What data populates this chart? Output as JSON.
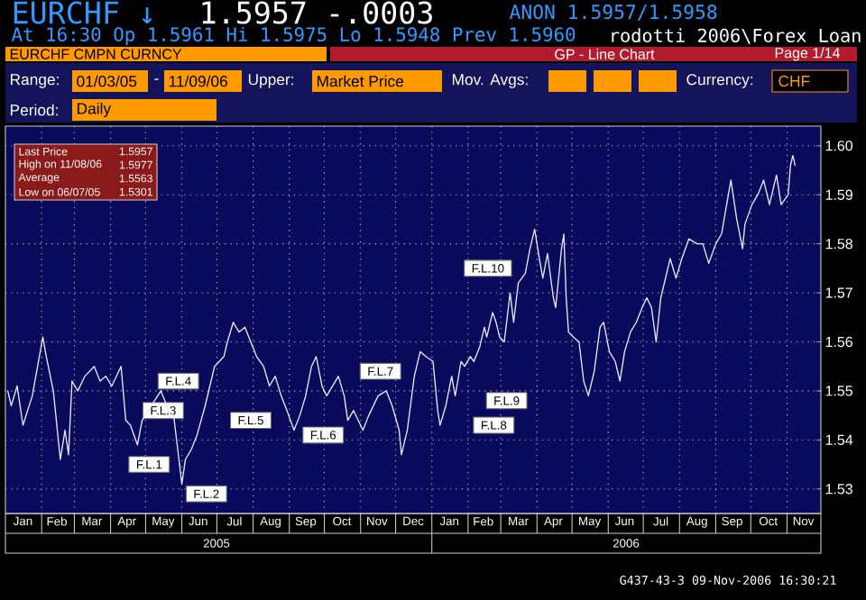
{
  "chart_data": {
    "type": "line",
    "title": "EURCHF CMPN CURNCY",
    "subtitle": "GP - Line Chart",
    "annotations": [
      "EURCHF ↓",
      "1.5957 -.0003",
      "ANON 1.5957/1.5958",
      "At 16:30 Op 1.5961 Hi 1.5975 Lo 1.5948 Prev 1.5960",
      "rodotti 2006\\Forex Loan",
      "Page 1/14",
      "Range:",
      "01/03/05",
      "-",
      "11/09/06",
      "Upper:",
      "Market Price",
      "Mov. Avgs:",
      "Currency:",
      "CHF",
      "Period:",
      "Daily",
      "Last Price",
      "1.5957",
      "High on 11/08/06",
      "1.5977",
      "Average",
      "1.5563",
      "Low on 06/07/05",
      "1.5301",
      "G437-43-3 09-Nov-2006 16:30:21",
      "2005",
      "2006",
      {
        "text": "F.L.1",
        "x": "2005-05-04",
        "y": 1.535
      },
      {
        "text": "F.L.2",
        "x": "2005-06-22",
        "y": 1.529
      },
      {
        "text": "F.L.3",
        "x": "2005-05-16",
        "y": 1.546
      },
      {
        "text": "F.L.4",
        "x": "2005-05-29",
        "y": 1.552
      },
      {
        "text": "F.L.5",
        "x": "2005-07-30",
        "y": 1.544
      },
      {
        "text": "F.L.6",
        "x": "2005-09-30",
        "y": 1.541
      },
      {
        "text": "F.L.7",
        "x": "2005-11-18",
        "y": 1.554
      },
      {
        "text": "F.L.8",
        "x": "2006-02-23",
        "y": 1.543
      },
      {
        "text": "F.L.9",
        "x": "2006-03-06",
        "y": 1.548
      },
      {
        "text": "F.L.10",
        "x": "2006-02-18",
        "y": 1.575
      }
    ],
    "x": [
      "2005-01-03",
      "2005-01-06",
      "2005-01-11",
      "2005-01-16",
      "2005-01-24",
      "2005-02-02",
      "2005-02-05",
      "2005-02-11",
      "2005-02-17",
      "2005-02-21",
      "2005-02-24",
      "2005-02-27",
      "2005-03-04",
      "2005-03-10",
      "2005-03-18",
      "2005-03-23",
      "2005-03-28",
      "2005-04-02",
      "2005-04-10",
      "2005-04-14",
      "2005-04-18",
      "2005-04-24",
      "2005-04-28",
      "2005-05-06",
      "2005-05-14",
      "2005-05-21",
      "2005-05-25",
      "2005-05-28",
      "2005-06-01",
      "2005-06-04",
      "2005-06-09",
      "2005-06-14",
      "2005-06-21",
      "2005-06-29",
      "2005-07-07",
      "2005-07-10",
      "2005-07-15",
      "2005-07-20",
      "2005-07-25",
      "2005-07-30",
      "2005-08-04",
      "2005-08-10",
      "2005-08-15",
      "2005-08-20",
      "2005-08-25",
      "2005-08-30",
      "2005-09-05",
      "2005-09-10",
      "2005-09-15",
      "2005-09-20",
      "2005-09-24",
      "2005-09-29",
      "2005-10-03",
      "2005-10-08",
      "2005-10-13",
      "2005-10-18",
      "2005-10-21",
      "2005-10-26",
      "2005-11-03",
      "2005-11-08",
      "2005-11-16",
      "2005-11-23",
      "2005-11-28",
      "2005-12-04",
      "2005-12-06",
      "2005-12-11",
      "2005-12-17",
      "2005-12-22",
      "2005-12-27",
      "2006-01-02",
      "2006-01-06",
      "2006-01-08",
      "2006-01-13",
      "2006-01-18",
      "2006-01-21",
      "2006-01-26",
      "2006-01-29",
      "2006-02-03",
      "2006-02-06",
      "2006-02-11",
      "2006-02-15",
      "2006-02-17",
      "2006-02-22",
      "2006-02-25",
      "2006-02-28",
      "2006-03-04",
      "2006-03-09",
      "2006-03-12",
      "2006-03-16",
      "2006-03-22",
      "2006-03-26",
      "2006-03-30",
      "2006-04-03",
      "2006-04-06",
      "2006-04-10",
      "2006-04-15",
      "2006-04-17",
      "2006-04-22",
      "2006-04-24",
      "2006-04-26",
      "2006-04-28",
      "2006-05-02",
      "2006-05-07",
      "2006-05-11",
      "2006-05-15",
      "2006-05-20",
      "2006-05-25",
      "2006-05-28",
      "2006-06-02",
      "2006-06-07",
      "2006-06-11",
      "2006-06-15",
      "2006-06-20",
      "2006-06-25",
      "2006-06-30",
      "2006-07-04",
      "2006-07-08",
      "2006-07-12",
      "2006-07-16",
      "2006-07-21",
      "2006-07-24",
      "2006-07-29",
      "2006-08-03",
      "2006-08-09",
      "2006-08-16",
      "2006-08-21",
      "2006-08-26",
      "2006-09-01",
      "2006-09-06",
      "2006-09-14",
      "2006-09-19",
      "2006-09-24",
      "2006-09-26",
      "2006-10-02",
      "2006-10-07",
      "2006-10-12",
      "2006-10-17",
      "2006-10-23",
      "2006-10-27",
      "2006-11-02",
      "2006-11-04",
      "2006-11-06",
      "2006-11-08"
    ],
    "series": [
      {
        "color": "#e8e8ff",
        "values": [
          1.55,
          1.547,
          1.551,
          1.543,
          1.549,
          1.561,
          1.557,
          1.55,
          1.536,
          1.542,
          1.537,
          1.552,
          1.55,
          1.553,
          1.555,
          1.552,
          1.553,
          1.551,
          1.555,
          1.544,
          1.543,
          1.539,
          1.544,
          1.547,
          1.55,
          1.546,
          1.545,
          1.539,
          1.531,
          1.536,
          1.538,
          1.541,
          1.547,
          1.555,
          1.557,
          1.56,
          1.564,
          1.562,
          1.563,
          1.56,
          1.557,
          1.555,
          1.551,
          1.553,
          1.549,
          1.546,
          1.542,
          1.545,
          1.549,
          1.555,
          1.557,
          1.551,
          1.549,
          1.551,
          1.553,
          1.549,
          1.544,
          1.546,
          1.542,
          1.545,
          1.549,
          1.55,
          1.547,
          1.542,
          1.537,
          1.542,
          1.553,
          1.558,
          1.557,
          1.556,
          1.546,
          1.543,
          1.547,
          1.553,
          1.549,
          1.556,
          1.555,
          1.557,
          1.556,
          1.559,
          1.563,
          1.561,
          1.566,
          1.564,
          1.561,
          1.56,
          1.57,
          1.564,
          1.572,
          1.574,
          1.579,
          1.583,
          1.577,
          1.573,
          1.578,
          1.569,
          1.567,
          1.579,
          1.582,
          1.569,
          1.562,
          1.561,
          1.56,
          1.552,
          1.549,
          1.554,
          1.563,
          1.564,
          1.558,
          1.556,
          1.552,
          1.558,
          1.562,
          1.564,
          1.567,
          1.569,
          1.567,
          1.56,
          1.569,
          1.574,
          1.577,
          1.573,
          1.577,
          1.581,
          1.58,
          1.58,
          1.576,
          1.58,
          1.582,
          1.593,
          1.585,
          1.579,
          1.584,
          1.588,
          1.59,
          1.593,
          1.588,
          1.594,
          1.588,
          1.59,
          1.596,
          1.598,
          1.596
        ]
      }
    ],
    "xlim": [
      "2005-01-01",
      "2006-11-30"
    ],
    "xticks": [
      {
        "value": "2005-01-16",
        "label": "Jan"
      },
      {
        "value": "2005-02-14",
        "label": "Feb"
      },
      {
        "value": "2005-03-16",
        "label": "Mar"
      },
      {
        "value": "2005-04-15",
        "label": "Apr"
      },
      {
        "value": "2005-05-16",
        "label": "May"
      },
      {
        "value": "2005-06-15",
        "label": "Jun"
      },
      {
        "value": "2005-07-16",
        "label": "Jul"
      },
      {
        "value": "2005-08-16",
        "label": "Aug"
      },
      {
        "value": "2005-09-15",
        "label": "Sep"
      },
      {
        "value": "2005-10-16",
        "label": "Oct"
      },
      {
        "value": "2005-11-15",
        "label": "Nov"
      },
      {
        "value": "2005-12-16",
        "label": "Dec"
      },
      {
        "value": "2006-01-16",
        "label": "Jan"
      },
      {
        "value": "2006-02-14",
        "label": "Feb"
      },
      {
        "value": "2006-03-16",
        "label": "Mar"
      },
      {
        "value": "2006-04-15",
        "label": "Apr"
      },
      {
        "value": "2006-05-16",
        "label": "May"
      },
      {
        "value": "2006-06-15",
        "label": "Jun"
      },
      {
        "value": "2006-07-16",
        "label": "Jul"
      },
      {
        "value": "2006-08-16",
        "label": "Aug"
      },
      {
        "value": "2006-09-15",
        "label": "Sep"
      },
      {
        "value": "2006-10-16",
        "label": "Oct"
      },
      {
        "value": "2006-11-15",
        "label": "Nov"
      }
    ],
    "ylim": [
      1.525,
      1.604
    ],
    "yticks": [
      1.53,
      1.54,
      1.55,
      1.56,
      1.57,
      1.58,
      1.59,
      {
        "value": 1.6,
        "label": "1.60"
      }
    ],
    "grid": true
  }
}
